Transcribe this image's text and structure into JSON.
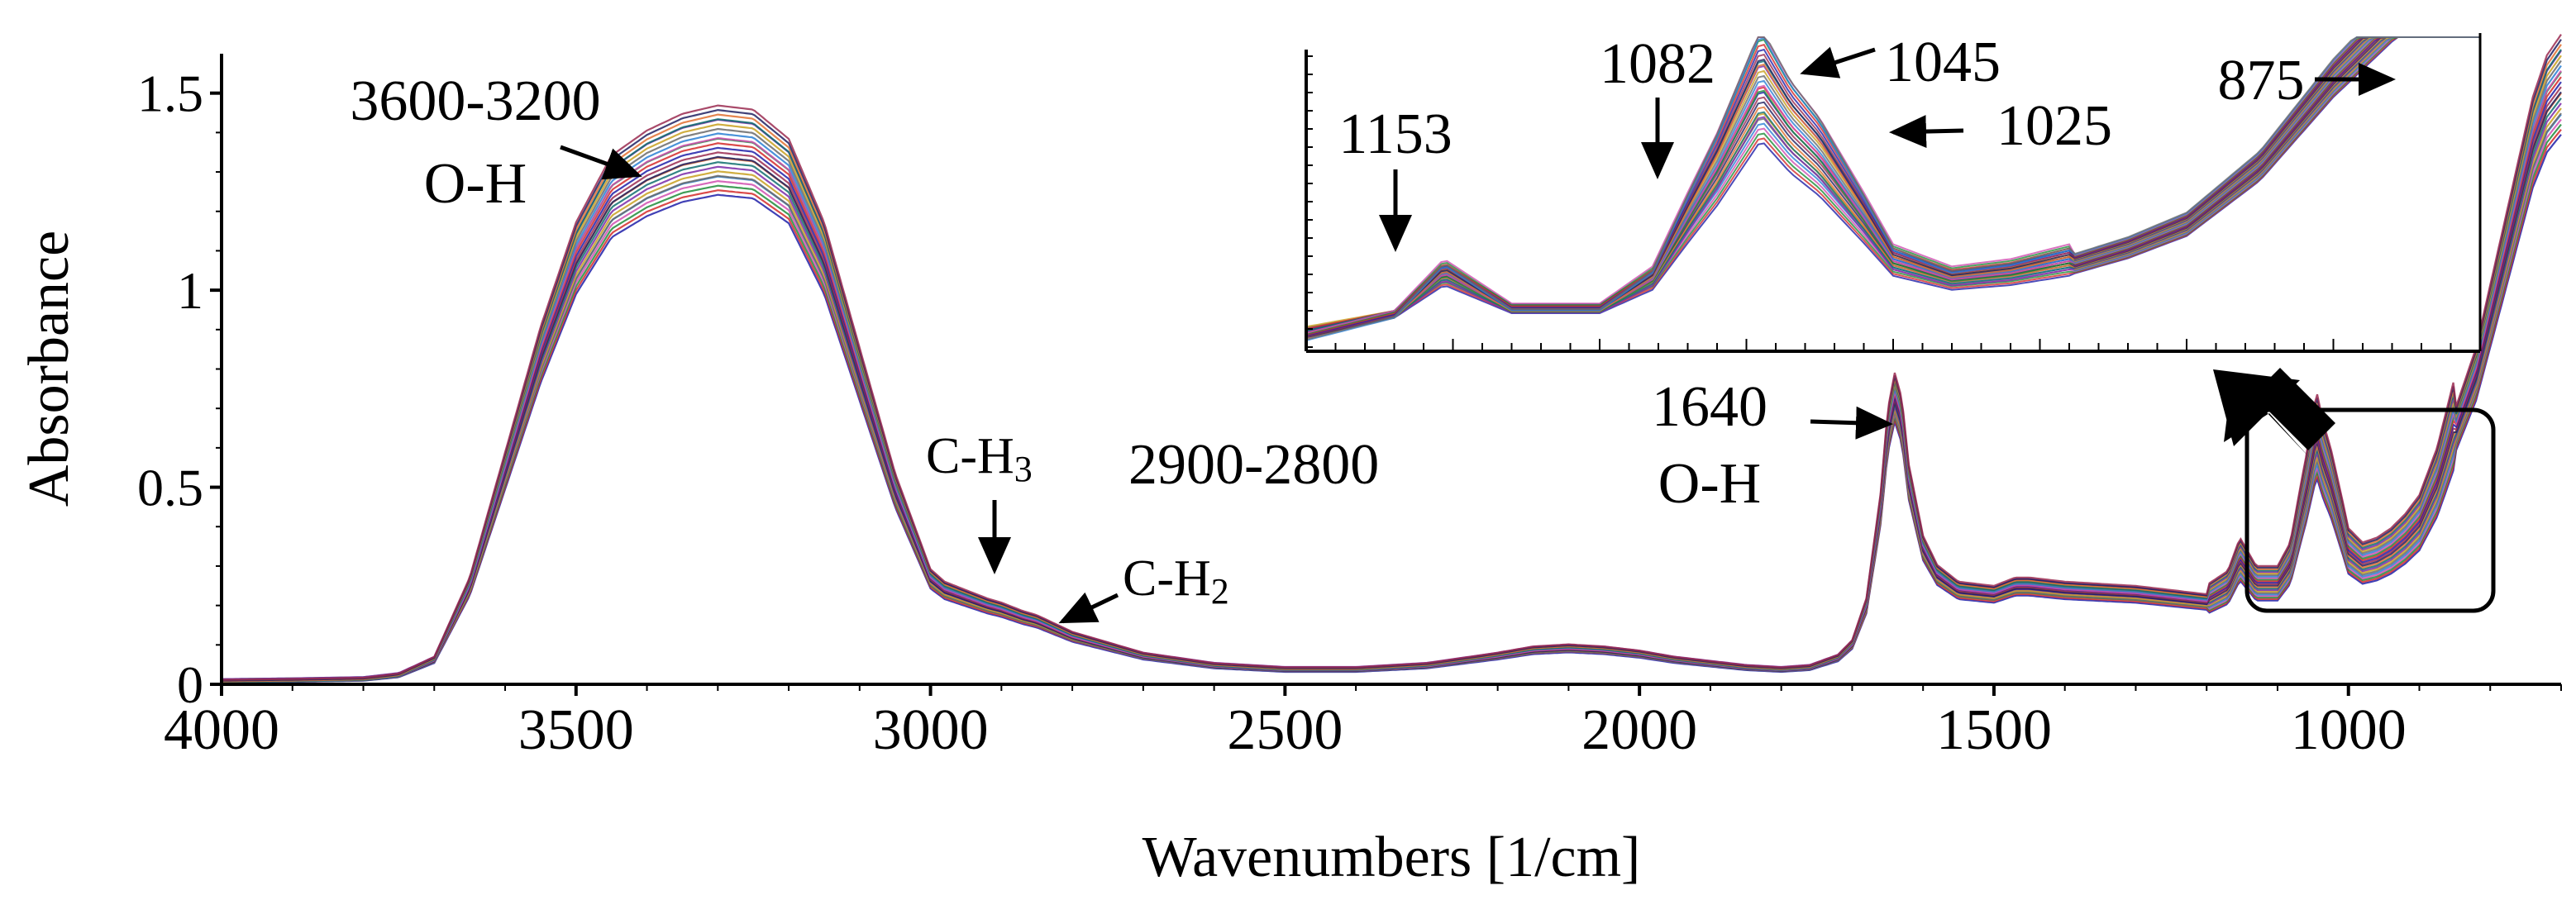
{
  "chart_data": {
    "type": "line",
    "title": "",
    "xlabel": "Wavenumbers [1/cm]",
    "ylabel": "Absorbance",
    "xlim": [
      4000,
      700
    ],
    "ylim": [
      0,
      1.6
    ],
    "x_ticks": [
      4000,
      3500,
      3000,
      2500,
      2000,
      1500,
      1000
    ],
    "x_tick_labels": [
      "4000",
      "3500",
      "3000",
      "2500",
      "2000",
      "1500",
      "1000"
    ],
    "y_ticks": [
      0,
      0.5,
      1,
      1.5
    ],
    "y_tick_labels": [
      "0",
      "0.5",
      "1",
      "1.5"
    ],
    "grid": false,
    "series_colors": [
      "#1f1fa8",
      "#d42a2a",
      "#1e8c3a",
      "#d04fb0",
      "#2a7fd4",
      "#6a6a6a",
      "#c8a020",
      "#7a2aa8",
      "#0f6f6f",
      "#e07030",
      "#202060",
      "#9a2a50"
    ],
    "mean_spectrum": {
      "x": [
        4000,
        3900,
        3800,
        3750,
        3700,
        3650,
        3600,
        3550,
        3500,
        3450,
        3400,
        3350,
        3300,
        3250,
        3200,
        3150,
        3100,
        3050,
        3000,
        2980,
        2950,
        2920,
        2900,
        2870,
        2850,
        2800,
        2700,
        2600,
        2500,
        2400,
        2300,
        2200,
        2150,
        2100,
        2050,
        2000,
        1950,
        1900,
        1850,
        1800,
        1760,
        1720,
        1700,
        1680,
        1660,
        1650,
        1640,
        1630,
        1620,
        1600,
        1580,
        1550,
        1500,
        1470,
        1450,
        1400,
        1350,
        1300,
        1250,
        1200,
        1170,
        1153,
        1130,
        1100,
        1082,
        1070,
        1060,
        1045,
        1035,
        1025,
        1010,
        1000,
        980,
        960,
        940,
        920,
        900,
        875,
        850,
        820,
        800,
        780,
        760,
        740,
        720,
        700
      ],
      "y": [
        0.005,
        0.007,
        0.01,
        0.02,
        0.06,
        0.25,
        0.55,
        0.85,
        1.1,
        1.26,
        1.32,
        1.36,
        1.38,
        1.37,
        1.3,
        1.1,
        0.8,
        0.5,
        0.27,
        0.24,
        0.22,
        0.2,
        0.19,
        0.17,
        0.16,
        0.12,
        0.07,
        0.045,
        0.035,
        0.035,
        0.045,
        0.07,
        0.085,
        0.09,
        0.085,
        0.075,
        0.06,
        0.05,
        0.04,
        0.035,
        0.04,
        0.065,
        0.1,
        0.2,
        0.45,
        0.65,
        0.74,
        0.68,
        0.52,
        0.35,
        0.28,
        0.24,
        0.23,
        0.25,
        0.25,
        0.24,
        0.235,
        0.23,
        0.22,
        0.21,
        0.24,
        0.31,
        0.25,
        0.25,
        0.3,
        0.4,
        0.48,
        0.62,
        0.55,
        0.5,
        0.4,
        0.33,
        0.3,
        0.31,
        0.33,
        0.36,
        0.4,
        0.5,
        0.65,
        0.8,
        0.95,
        1.1,
        1.25,
        1.4,
        1.5,
        1.55
      ]
    },
    "annotations": [
      {
        "id": "oh-stretch",
        "lines": [
          "3600-3200",
          "O-H"
        ],
        "x": 3400
      },
      {
        "id": "ch3",
        "lines": [
          "C-H",
          "3"
        ],
        "x": 2920
      },
      {
        "id": "ch-range",
        "lines": [
          "2900-2800"
        ],
        "x": 2850
      },
      {
        "id": "ch2",
        "lines": [
          "C-H",
          "2"
        ],
        "x": 2850
      },
      {
        "id": "oh-bend",
        "lines": [
          "1640",
          "O-H"
        ],
        "x": 1640
      }
    ],
    "inset": {
      "description": "zoomed region 1200-700",
      "peaks": [
        "1153",
        "1082",
        "1045",
        "1025",
        "875"
      ]
    }
  },
  "labels": {
    "oh_range": "3600-3200",
    "oh_label": "O-H",
    "ch3_main": "C-H",
    "ch3_sub": "3",
    "ch_range": "2900-2800",
    "ch2_main": "C-H",
    "ch2_sub": "2",
    "peak_1640": "1640",
    "oh_label_2": "O-H",
    "inset_1153": "1153",
    "inset_1082": "1082",
    "inset_1045": "1045",
    "inset_1025": "1025",
    "inset_875": "875"
  }
}
